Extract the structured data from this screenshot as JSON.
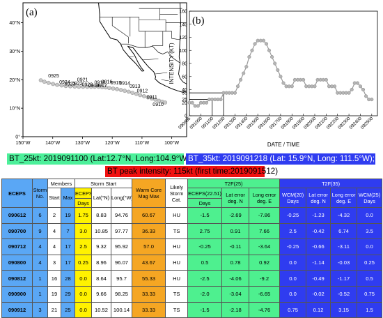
{
  "chart_data": [
    {
      "type": "map",
      "panel_label": "(a)",
      "x_ticks": [
        "150°W",
        "140°W",
        "130°W",
        "120°W",
        "110°W",
        "100°W"
      ],
      "y_ticks": [
        "0°",
        "10°N",
        "20°N",
        "30°N",
        "40°N"
      ],
      "xlim": [
        -150,
        -95
      ],
      "ylim": [
        0,
        47
      ],
      "track": [
        {
          "lon": -144.0,
          "lat": 19.8
        },
        {
          "lon": -142.8,
          "lat": 19.3
        },
        {
          "lon": -141.4,
          "lat": 18.9
        },
        {
          "lon": -139.9,
          "lat": 18.5
        },
        {
          "lon": -138.5,
          "lat": 18.2
        },
        {
          "lon": -137.0,
          "lat": 18.0
        },
        {
          "lon": -135.6,
          "lat": 17.8
        },
        {
          "lon": -134.1,
          "lat": 17.7
        },
        {
          "lon": -132.6,
          "lat": 17.6
        },
        {
          "lon": -131.2,
          "lat": 17.5
        },
        {
          "lon": -129.8,
          "lat": 17.5
        },
        {
          "lon": -128.4,
          "lat": 17.5
        },
        {
          "lon": -127.1,
          "lat": 17.5
        },
        {
          "lon": -125.9,
          "lat": 17.5
        },
        {
          "lon": -124.6,
          "lat": 17.5
        },
        {
          "lon": -123.4,
          "lat": 17.4
        },
        {
          "lon": -122.2,
          "lat": 17.3
        },
        {
          "lon": -121.0,
          "lat": 17.1
        },
        {
          "lon": -119.7,
          "lat": 16.9
        },
        {
          "lon": -118.4,
          "lat": 16.7
        },
        {
          "lon": -117.1,
          "lat": 16.4
        },
        {
          "lon": -115.8,
          "lat": 16.1
        },
        {
          "lon": -114.5,
          "lat": 15.8
        },
        {
          "lon": -113.2,
          "lat": 15.4
        },
        {
          "lon": -111.9,
          "lat": 15.0
        },
        {
          "lon": -110.6,
          "lat": 14.6
        },
        {
          "lon": -109.3,
          "lat": 14.2
        },
        {
          "lon": -108.0,
          "lat": 13.8
        },
        {
          "lon": -106.7,
          "lat": 13.4
        },
        {
          "lon": -105.5,
          "lat": 13.0
        },
        {
          "lon": -104.3,
          "lat": 12.6
        },
        {
          "lon": -103.2,
          "lat": 12.3
        },
        {
          "lon": -102.2,
          "lat": 12.0
        }
      ],
      "date_labels": [
        {
          "text": "0925",
          "lon": -141.5,
          "lat": 20.8
        },
        {
          "text": "0924",
          "lon": -137.8,
          "lat": 18.6
        },
        {
          "text": "0923",
          "lon": -136.0,
          "lat": 18.0
        },
        {
          "text": "0922",
          "lon": -133.6,
          "lat": 18.1
        },
        {
          "text": "0921",
          "lon": -131.8,
          "lat": 19.4
        },
        {
          "text": "0920",
          "lon": -130.2,
          "lat": 17.7
        },
        {
          "text": "0919",
          "lon": -128.0,
          "lat": 17.4
        },
        {
          "text": "0918",
          "lon": -126.0,
          "lat": 18.5
        },
        {
          "text": "0917",
          "lon": -125.4,
          "lat": 17.4
        },
        {
          "text": "0916",
          "lon": -123.6,
          "lat": 18.7
        },
        {
          "text": "0915",
          "lon": -120.6,
          "lat": 18.4
        },
        {
          "text": "0914",
          "lon": -117.6,
          "lat": 18.2
        },
        {
          "text": "0913",
          "lon": -114.2,
          "lat": 17.1
        },
        {
          "text": "0912",
          "lon": -111.7,
          "lat": 15.5
        },
        {
          "text": "0911",
          "lon": -108.4,
          "lat": 13.3
        },
        {
          "text": "0910",
          "lon": -106.4,
          "lat": 10.8
        }
      ]
    },
    {
      "type": "line",
      "panel_label": "(b)",
      "xlabel": "DATE / TIME",
      "ylabel": "INTENSITY (KT)",
      "ylim": [
        0,
        160
      ],
      "y_ticks": [
        0,
        20,
        25,
        35,
        40,
        60,
        80,
        100,
        120,
        140,
        160
      ],
      "x_tick_labels": [
        "090906",
        "091000",
        "091100",
        "091200",
        "091300",
        "091400",
        "091500",
        "091600",
        "091700",
        "091800",
        "091900",
        "092000",
        "092100",
        "092200",
        "092300",
        "092400",
        "092500"
      ],
      "xlim": [
        0,
        16.5
      ],
      "x": [
        0,
        0.25,
        0.5,
        0.75,
        1.0,
        1.25,
        1.5,
        1.75,
        2.0,
        2.25,
        2.5,
        2.75,
        3.0,
        3.25,
        3.5,
        3.75,
        4.0,
        4.25,
        4.5,
        4.75,
        5.0,
        5.25,
        5.5,
        5.75,
        6.0,
        6.25,
        6.5,
        6.75,
        7.0,
        7.25,
        7.5,
        7.75,
        8.0,
        8.25,
        8.5,
        8.75,
        9.0,
        9.25,
        9.5,
        9.75,
        10.0,
        10.25,
        10.5,
        10.75,
        11.0,
        11.25,
        11.5,
        11.75,
        12.0,
        12.25,
        12.5,
        12.75,
        13.0,
        13.25,
        13.5,
        13.75,
        14.0,
        14.25,
        14.5,
        14.75,
        15.0,
        15.25,
        15.5,
        15.75,
        16.0
      ],
      "values": [
        20,
        20,
        15,
        15,
        20,
        20,
        20,
        25,
        25,
        25,
        25,
        25,
        35,
        35,
        35,
        35,
        35,
        45,
        55,
        65,
        75,
        90,
        100,
        110,
        115,
        115,
        115,
        110,
        100,
        90,
        80,
        70,
        60,
        50,
        45,
        45,
        45,
        55,
        55,
        55,
        55,
        45,
        45,
        45,
        45,
        55,
        55,
        55,
        55,
        45,
        45,
        45,
        35,
        35,
        35,
        35,
        35,
        40,
        50,
        50,
        45,
        40,
        30,
        25,
        25
      ],
      "reference_lines": [
        {
          "y": 25,
          "x": 2.0
        },
        {
          "y": 35,
          "x": 3.0
        }
      ]
    }
  ],
  "banners": {
    "bt25": "BT_25kt: 2019091100 (Lat:12.7°N, Long:104.9°W);",
    "bt35": "BT_35kt: 2019091218 (Lat: 15.9°N, Long: 111.5°W);",
    "peak": "BT peak intensity: 115kt (first time:2019091512)"
  },
  "table": {
    "headers": {
      "eceps": "ECEPS",
      "storm_no": "Storm No.",
      "members": "Members",
      "start": "Start",
      "max": "Max",
      "storm_start": "Storm Start",
      "eceps_days": "ECEPS",
      "days": "Days",
      "lat": "Lat(°N)",
      "long": "Long(°W)",
      "warm_core": "Warm Core Mag Max",
      "likely": "Likely Storm Cat.",
      "t2f25": "T2F(25)",
      "eceps2251": "ECEPS(22.51)",
      "days25": "Days",
      "lat_err": "Lat error deg. N",
      "long_err": "Long error deg. E",
      "t2f35": "T2F(35)",
      "wcm20": "WCM(20) Days",
      "lat_err35": "Lat error deg. N",
      "long_err35": "Long error deg. E",
      "wcm25": "WCM(25) Days"
    },
    "rows": [
      [
        "090612",
        "6",
        "2",
        "19",
        "1.75",
        "8.83",
        "94.76",
        "60.67",
        "HU",
        "-1.5",
        "-2.69",
        "-7.86",
        "-0.25",
        "-1.23",
        "-4.32",
        "0.0"
      ],
      [
        "090700",
        "9",
        "4",
        "7",
        "3.0",
        "10.85",
        "97.77",
        "36.33",
        "TS",
        "2.75",
        "0.91",
        "7.66",
        "2.5",
        "-0.42",
        "6.74",
        "3.5"
      ],
      [
        "090712",
        "4",
        "4",
        "17",
        "2.5",
        "9.32",
        "95.92",
        "57.0",
        "HU",
        "-0.25",
        "-0.11",
        "-3.64",
        "-0.25",
        "-0.66",
        "-3.11",
        "0.0"
      ],
      [
        "090800",
        "4",
        "3",
        "17",
        "0.25",
        "8.96",
        "96.07",
        "43.67",
        "HU",
        "0.5",
        "0.78",
        "0.92",
        "0.0",
        "-1.14",
        "-0.03",
        "0.25"
      ],
      [
        "090812",
        "1",
        "16",
        "28",
        "0.0",
        "8.64",
        "95.7",
        "55.33",
        "HU",
        "-2.5",
        "-4.06",
        "-9.2",
        "0.0",
        "-0.49",
        "-1.17",
        "0.5"
      ],
      [
        "090900",
        "1",
        "19",
        "29",
        "0.0",
        "9.66",
        "98.25",
        "33.33",
        "TS",
        "-2.0",
        "-3.04",
        "-6.65",
        "0.0",
        "-0.02",
        "-0.52",
        "0.75"
      ],
      [
        "090912",
        "3",
        "21",
        "25",
        "0.0",
        "10.52",
        "100.14",
        "33.33",
        "TS",
        "-1.5",
        "-2.18",
        "-4.76",
        "0.75",
        "0.12",
        "3.15",
        "1.5"
      ]
    ]
  }
}
